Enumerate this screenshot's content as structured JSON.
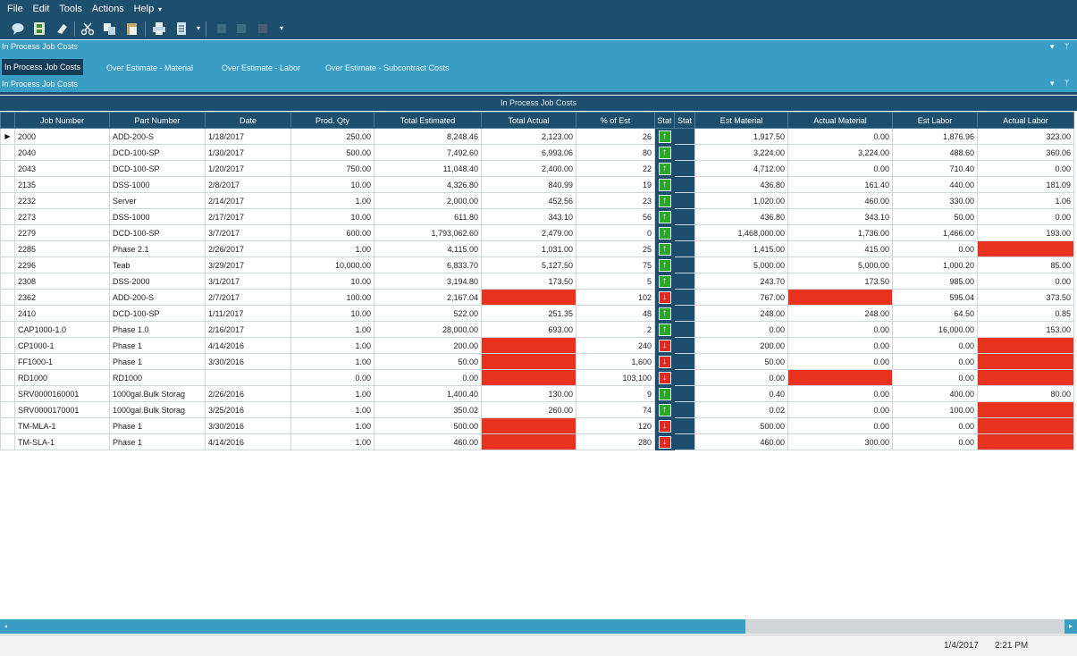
{
  "menu": [
    "File",
    "Edit",
    "Tools",
    "Actions",
    "Help"
  ],
  "menu_more": "▾",
  "toolbar_icons": [
    "chat-icon",
    "save-icon",
    "eraser-icon",
    "cut-icon",
    "copy-icon",
    "paste-icon",
    "print-icon",
    "document-icon"
  ],
  "panel_top": {
    "title": "In Process Job Costs",
    "controls": [
      "▾",
      "ᛘ"
    ]
  },
  "tabs": [
    {
      "label": "In Process Job Costs",
      "active": true
    },
    {
      "label": "Over Estimate - Material",
      "active": false
    },
    {
      "label": "Over Estimate - Labor",
      "active": false
    },
    {
      "label": "Over Estimate - Subcontract Costs",
      "active": false
    }
  ],
  "panel_sub": {
    "title": "In Process Job Costs"
  },
  "grid": {
    "title": "In Process Job Costs",
    "columns": [
      "Job Number",
      "Part Number",
      "Date",
      "Prod. Qty",
      "Total Estimated",
      "Total Actual",
      "% of Est",
      "Stat",
      "Stat",
      "Est Material",
      "Actual Material",
      "Est Labor",
      "Actual Labor"
    ],
    "rows": [
      {
        "job": "2000",
        "part": "ADD-200-S",
        "date": "1/18/2017",
        "qty": "250.00",
        "est": "8,248.46",
        "act": "2,123.00",
        "pct": "26",
        "stat": "up",
        "est_mat": "1,917.50",
        "act_mat": "0.00",
        "est_lab": "1,876.96",
        "act_lab": "323.00",
        "red": [],
        "selected": true
      },
      {
        "job": "2040",
        "part": "DCD-100-SP",
        "date": "1/30/2017",
        "qty": "500.00",
        "est": "7,492.60",
        "act": "6,993.06",
        "pct": "80",
        "stat": "up",
        "est_mat": "3,224.00",
        "act_mat": "3,224.00",
        "est_lab": "488.60",
        "act_lab": "360.06",
        "red": []
      },
      {
        "job": "2043",
        "part": "DCD-100-SP",
        "date": "1/20/2017",
        "qty": "750.00",
        "est": "11,048.40",
        "act": "2,400.00",
        "pct": "22",
        "stat": "up",
        "est_mat": "4,712.00",
        "act_mat": "0.00",
        "est_lab": "710.40",
        "act_lab": "0.00",
        "red": []
      },
      {
        "job": "2135",
        "part": "DSS-1000",
        "date": "2/8/2017",
        "qty": "10.00",
        "est": "4,326.80",
        "act": "840.99",
        "pct": "19",
        "stat": "up",
        "est_mat": "436.80",
        "act_mat": "161.40",
        "est_lab": "440.00",
        "act_lab": "181.09",
        "red": []
      },
      {
        "job": "2232",
        "part": "Server",
        "date": "2/14/2017",
        "qty": "1.00",
        "est": "2,000.00",
        "act": "452.56",
        "pct": "23",
        "stat": "up",
        "est_mat": "1,020.00",
        "act_mat": "460.00",
        "est_lab": "330.00",
        "act_lab": "1.06",
        "red": []
      },
      {
        "job": "2273",
        "part": "DSS-1000",
        "date": "2/17/2017",
        "qty": "10.00",
        "est": "611.80",
        "act": "343.10",
        "pct": "56",
        "stat": "up",
        "est_mat": "436.80",
        "act_mat": "343.10",
        "est_lab": "50.00",
        "act_lab": "0.00",
        "red": []
      },
      {
        "job": "2279",
        "part": "DCD-100-SP",
        "date": "3/7/2017",
        "qty": "600.00",
        "est": "1,793,062.60",
        "act": "2,479.00",
        "pct": "0",
        "stat": "up",
        "est_mat": "1,468,000.00",
        "act_mat": "1,736.00",
        "est_lab": "1,466.00",
        "act_lab": "193.00",
        "red": []
      },
      {
        "job": "2285",
        "part": "Phase 2.1",
        "date": "2/26/2017",
        "qty": "1.00",
        "est": "4,115.00",
        "act": "1,031.00",
        "pct": "25",
        "stat": "up",
        "est_mat": "1,415.00",
        "act_mat": "415.00",
        "est_lab": "0.00",
        "act_lab": "",
        "red": [
          "act_lab"
        ]
      },
      {
        "job": "2296",
        "part": "Teab",
        "date": "3/29/2017",
        "qty": "10,000.00",
        "est": "6,833.70",
        "act": "5,127.50",
        "pct": "75",
        "stat": "up",
        "est_mat": "5,000.00",
        "act_mat": "5,000.00",
        "est_lab": "1,000.20",
        "act_lab": "85.00",
        "red": []
      },
      {
        "job": "2308",
        "part": "DSS-2000",
        "date": "3/1/2017",
        "qty": "10.00",
        "est": "3,194.80",
        "act": "173.50",
        "pct": "5",
        "stat": "up",
        "est_mat": "243.70",
        "act_mat": "173.50",
        "est_lab": "985.00",
        "act_lab": "0.00",
        "red": []
      },
      {
        "job": "2362",
        "part": "ADD-200-S",
        "date": "2/7/2017",
        "qty": "100.00",
        "est": "2,167.04",
        "act": "",
        "pct": "102",
        "stat": "down",
        "est_mat": "767.00",
        "act_mat": "",
        "est_lab": "595.04",
        "act_lab": "373.50",
        "red": [
          "act",
          "act_mat"
        ]
      },
      {
        "job": "2410",
        "part": "DCD-100-SP",
        "date": "1/11/2017",
        "qty": "10.00",
        "est": "522.00",
        "act": "251.35",
        "pct": "48",
        "stat": "up",
        "est_mat": "248.00",
        "act_mat": "248.00",
        "est_lab": "64.50",
        "act_lab": "0.85",
        "red": []
      },
      {
        "job": "CAP1000-1.0",
        "part": "Phase 1.0",
        "date": "2/16/2017",
        "qty": "1.00",
        "est": "28,000.00",
        "act": "693.00",
        "pct": "2",
        "stat": "up",
        "est_mat": "0.00",
        "act_mat": "0.00",
        "est_lab": "16,000.00",
        "act_lab": "153.00",
        "red": []
      },
      {
        "job": "CP1000-1",
        "part": "Phase 1",
        "date": "4/14/2016",
        "qty": "1.00",
        "est": "200.00",
        "act": "",
        "pct": "240",
        "stat": "down",
        "est_mat": "200.00",
        "act_mat": "0.00",
        "est_lab": "0.00",
        "act_lab": "",
        "red": [
          "act",
          "act_lab"
        ]
      },
      {
        "job": "FF1000-1",
        "part": "Phase 1",
        "date": "3/30/2016",
        "qty": "1.00",
        "est": "50.00",
        "act": "",
        "pct": "1,600",
        "stat": "down",
        "est_mat": "50.00",
        "act_mat": "0.00",
        "est_lab": "0.00",
        "act_lab": "",
        "red": [
          "act",
          "act_lab"
        ]
      },
      {
        "job": "RD1000",
        "part": "RD1000",
        "date": "",
        "qty": "0.00",
        "est": "0.00",
        "act": "",
        "pct": "103,100",
        "stat": "down",
        "est_mat": "0.00",
        "act_mat": "",
        "est_lab": "0.00",
        "act_lab": "",
        "red": [
          "act",
          "act_mat",
          "act_lab"
        ]
      },
      {
        "job": "SRV0000160001",
        "part": "1000gal.Bulk Storag",
        "date": "2/26/2016",
        "qty": "1.00",
        "est": "1,400.40",
        "act": "130.00",
        "pct": "9",
        "stat": "up",
        "est_mat": "0.40",
        "act_mat": "0.00",
        "est_lab": "400.00",
        "act_lab": "80.00",
        "red": []
      },
      {
        "job": "SRV0000170001",
        "part": "1000gal.Bulk Storag",
        "date": "3/25/2016",
        "qty": "1.00",
        "est": "350.02",
        "act": "260.00",
        "pct": "74",
        "stat": "up",
        "est_mat": "0.02",
        "act_mat": "0.00",
        "est_lab": "100.00",
        "act_lab": "",
        "red": [
          "act_lab"
        ]
      },
      {
        "job": "TM-MLA-1",
        "part": "Phase 1",
        "date": "3/30/2016",
        "qty": "1.00",
        "est": "500.00",
        "act": "",
        "pct": "120",
        "stat": "down",
        "est_mat": "500.00",
        "act_mat": "0.00",
        "est_lab": "0.00",
        "act_lab": "",
        "red": [
          "act",
          "act_lab"
        ]
      },
      {
        "job": "TM-SLA-1",
        "part": "Phase 1",
        "date": "4/14/2016",
        "qty": "1.00",
        "est": "460.00",
        "act": "",
        "pct": "280",
        "stat": "down",
        "est_mat": "460.00",
        "act_mat": "300.00",
        "est_lab": "0.00",
        "act_lab": "",
        "red": [
          "act",
          "act_lab"
        ]
      }
    ]
  },
  "status": {
    "date": "1/4/2017",
    "time": "2:21 PM"
  },
  "colors": {
    "header_bg": "#1e4e6e",
    "panel_bg": "#3a9dc4",
    "over_estimate": "#e8321d",
    "status_up": "#2ea42b",
    "status_down": "#de2a23"
  }
}
